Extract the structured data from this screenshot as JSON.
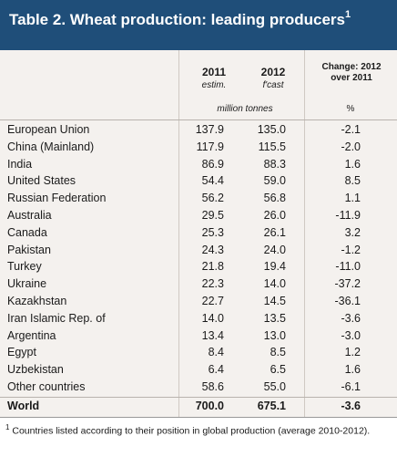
{
  "title": {
    "text": "Table 2. Wheat production: leading producers",
    "marker": "1"
  },
  "header": {
    "col2011": {
      "year": "2011",
      "sub": "estim."
    },
    "col2012": {
      "year": "2012",
      "sub": "f'cast"
    },
    "change": {
      "line1": "Change: 2012",
      "line2": "over 2011"
    },
    "units": "million tonnes",
    "pct": "%"
  },
  "rows": [
    {
      "name": "European Union",
      "v2011": "137.9",
      "v2012": "135.0",
      "change": "-2.1"
    },
    {
      "name": "China (Mainland)",
      "v2011": "117.9",
      "v2012": "115.5",
      "change": "-2.0"
    },
    {
      "name": "India",
      "v2011": "86.9",
      "v2012": "88.3",
      "change": "1.6"
    },
    {
      "name": "United States",
      "v2011": "54.4",
      "v2012": "59.0",
      "change": "8.5"
    },
    {
      "name": "Russian Federation",
      "v2011": "56.2",
      "v2012": "56.8",
      "change": "1.1"
    },
    {
      "name": "Australia",
      "v2011": "29.5",
      "v2012": "26.0",
      "change": "-11.9"
    },
    {
      "name": "Canada",
      "v2011": "25.3",
      "v2012": "26.1",
      "change": "3.2"
    },
    {
      "name": "Pakistan",
      "v2011": "24.3",
      "v2012": "24.0",
      "change": "-1.2"
    },
    {
      "name": "Turkey",
      "v2011": "21.8",
      "v2012": "19.4",
      "change": "-11.0"
    },
    {
      "name": "Ukraine",
      "v2011": "22.3",
      "v2012": "14.0",
      "change": "-37.2"
    },
    {
      "name": "Kazakhstan",
      "v2011": "22.7",
      "v2012": "14.5",
      "change": "-36.1"
    },
    {
      "name": "Iran Islamic Rep. of",
      "v2011": "14.0",
      "v2012": "13.5",
      "change": "-3.6"
    },
    {
      "name": "Argentina",
      "v2011": "13.4",
      "v2012": "13.0",
      "change": "-3.0"
    },
    {
      "name": "Egypt",
      "v2011": "8.4",
      "v2012": "8.5",
      "change": "1.2"
    },
    {
      "name": "Uzbekistan",
      "v2011": "6.4",
      "v2012": "6.5",
      "change": "1.6"
    },
    {
      "name": "Other countries",
      "v2011": "58.6",
      "v2012": "55.0",
      "change": "-6.1"
    }
  ],
  "world": {
    "name": "World",
    "v2011": "700.0",
    "v2012": "675.1",
    "change": "-3.6"
  },
  "footnote": {
    "marker": "1",
    "text": "Countries listed according to their position in global production (average 2010-2012)."
  },
  "colors": {
    "title_bg": "#1f4e79",
    "table_bg": "#f4f1ee",
    "rule": "#b9b3ad"
  }
}
